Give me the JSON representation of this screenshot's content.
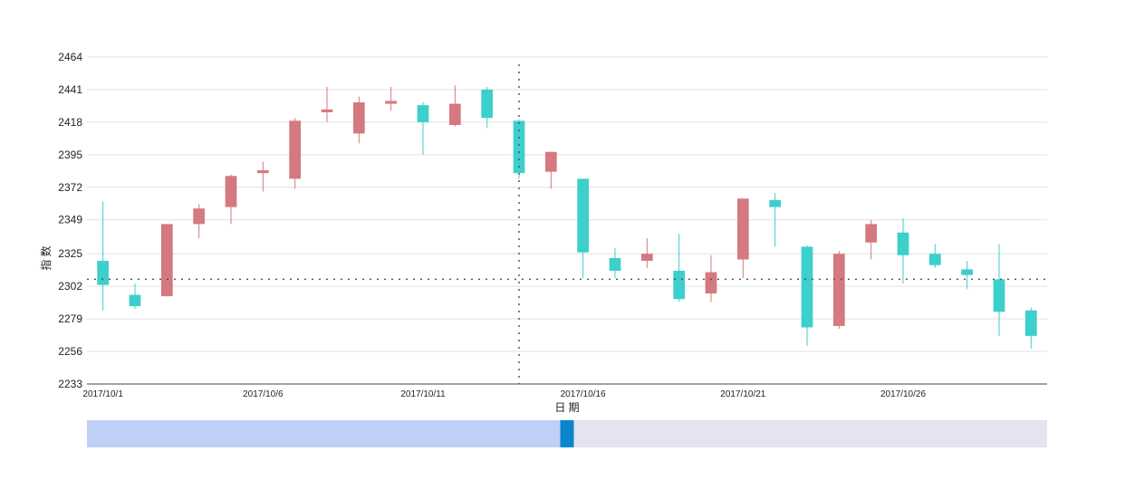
{
  "chart_data": {
    "type": "candlestick",
    "xlabel": "日 期",
    "ylabel": "指 数",
    "ylim": [
      2233,
      2464
    ],
    "y_ticks": [
      "2233",
      "2256",
      "2279",
      "2302",
      "2325",
      "2349",
      "2372",
      "2395",
      "2418",
      "2441",
      "2464"
    ],
    "x_tick_labels": [
      "2017/10/1",
      "2017/10/6",
      "2017/10/11",
      "2017/10/16",
      "2017/10/21",
      "2017/10/26"
    ],
    "grid": true,
    "up_color": "#d4797f",
    "down_color": "#3ccfcb",
    "crosshair": {
      "x_date": "2017/10/14",
      "y_value": 2307
    },
    "candles": [
      {
        "date": "2017/10/1",
        "open": 2320,
        "close": 2303,
        "low": 2285,
        "high": 2362
      },
      {
        "date": "2017/10/2",
        "open": 2296,
        "close": 2288,
        "low": 2286,
        "high": 2304
      },
      {
        "date": "2017/10/3",
        "open": 2295,
        "close": 2346,
        "low": 2295,
        "high": 2346
      },
      {
        "date": "2017/10/4",
        "open": 2346,
        "close": 2357,
        "low": 2336,
        "high": 2360
      },
      {
        "date": "2017/10/5",
        "open": 2358,
        "close": 2380,
        "low": 2346,
        "high": 2381
      },
      {
        "date": "2017/10/6",
        "open": 2382,
        "close": 2384,
        "low": 2369,
        "high": 2390
      },
      {
        "date": "2017/10/7",
        "open": 2378,
        "close": 2419,
        "low": 2371,
        "high": 2421
      },
      {
        "date": "2017/10/8",
        "open": 2425,
        "close": 2427,
        "low": 2418,
        "high": 2443
      },
      {
        "date": "2017/10/9",
        "open": 2410,
        "close": 2432,
        "low": 2403,
        "high": 2436
      },
      {
        "date": "2017/10/10",
        "open": 2431,
        "close": 2433,
        "low": 2426,
        "high": 2443
      },
      {
        "date": "2017/10/11",
        "open": 2430,
        "close": 2418,
        "low": 2395,
        "high": 2432
      },
      {
        "date": "2017/10/12",
        "open": 2416,
        "close": 2431,
        "low": 2415,
        "high": 2444
      },
      {
        "date": "2017/10/13",
        "open": 2441,
        "close": 2421,
        "low": 2414,
        "high": 2443
      },
      {
        "date": "2017/10/14",
        "open": 2419,
        "close": 2382,
        "low": 2378,
        "high": 2420
      },
      {
        "date": "2017/10/15",
        "open": 2383,
        "close": 2397,
        "low": 2371,
        "high": 2397
      },
      {
        "date": "2017/10/16",
        "open": 2378,
        "close": 2326,
        "low": 2308,
        "high": 2378
      },
      {
        "date": "2017/10/17",
        "open": 2322,
        "close": 2313,
        "low": 2308,
        "high": 2329
      },
      {
        "date": "2017/10/18",
        "open": 2320,
        "close": 2325,
        "low": 2315,
        "high": 2336
      },
      {
        "date": "2017/10/19",
        "open": 2313,
        "close": 2293,
        "low": 2291,
        "high": 2339
      },
      {
        "date": "2017/10/20",
        "open": 2297,
        "close": 2312,
        "low": 2291,
        "high": 2324
      },
      {
        "date": "2017/10/21",
        "open": 2321,
        "close": 2364,
        "low": 2308,
        "high": 2364
      },
      {
        "date": "2017/10/22",
        "open": 2363,
        "close": 2358,
        "low": 2330,
        "high": 2368
      },
      {
        "date": "2017/10/23",
        "open": 2330,
        "close": 2273,
        "low": 2260,
        "high": 2331
      },
      {
        "date": "2017/10/24",
        "open": 2274,
        "close": 2325,
        "low": 2272,
        "high": 2327
      },
      {
        "date": "2017/10/25",
        "open": 2333,
        "close": 2346,
        "low": 2321,
        "high": 2349
      },
      {
        "date": "2017/10/26",
        "open": 2340,
        "close": 2324,
        "low": 2304,
        "high": 2350
      },
      {
        "date": "2017/10/27",
        "open": 2325,
        "close": 2317,
        "low": 2315,
        "high": 2332
      },
      {
        "date": "2017/10/28",
        "open": 2314,
        "close": 2310,
        "low": 2300,
        "high": 2320
      },
      {
        "date": "2017/10/29",
        "open": 2307,
        "close": 2284,
        "low": 2267,
        "high": 2332
      },
      {
        "date": "2017/10/30",
        "open": 2285,
        "close": 2267,
        "low": 2258,
        "high": 2287
      }
    ]
  },
  "slider": {
    "start": 0,
    "end": 1,
    "handle": 0.5,
    "selected_color": "#bfcff5",
    "handle_color": "#0a86cd",
    "track_color": "#e5e3ef"
  }
}
